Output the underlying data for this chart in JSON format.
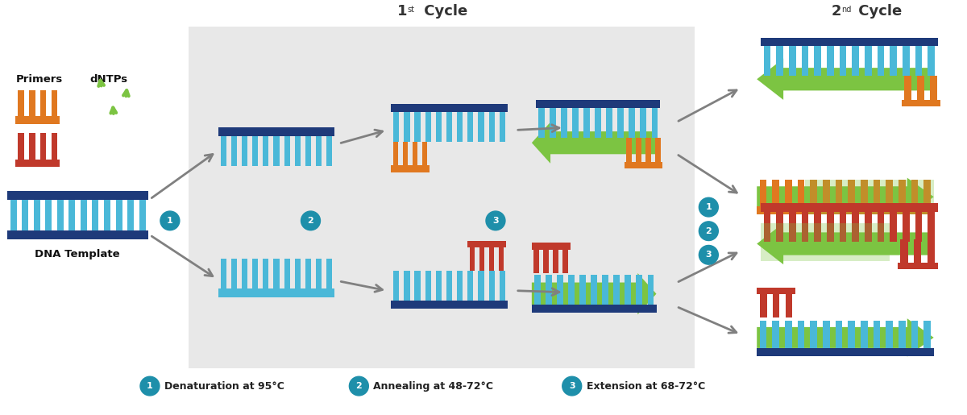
{
  "legend": [
    {
      "num": "1",
      "text": "Denaturation at 95°C"
    },
    {
      "num": "2",
      "text": "Annealing at 48-72°C"
    },
    {
      "num": "3",
      "text": "Extension at 68-72°C"
    }
  ],
  "colors": {
    "dark_blue": "#1e3a7a",
    "light_blue": "#4ab8d8",
    "orange": "#e07820",
    "red": "#c0392b",
    "green_fill": "#7cc442",
    "green_light": "#a8d870",
    "gray_arrow": "#808080",
    "teal_circle": "#1e8faa",
    "bg_gray": "#e8e8e8",
    "white": "#ffffff"
  }
}
